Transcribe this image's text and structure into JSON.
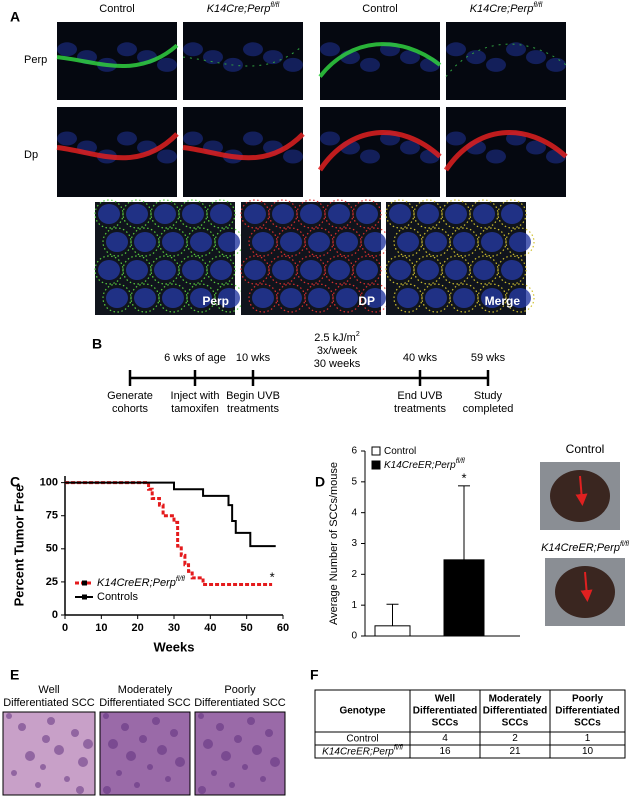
{
  "panel_labels": [
    "A",
    "B",
    "C",
    "D",
    "E",
    "F"
  ],
  "panel_a": {
    "column_headers": [
      {
        "text": "Control"
      },
      {
        "text": "K14Cre;Perp",
        "sup": "fl/fl"
      },
      {
        "text": "Control"
      },
      {
        "text": "K14Cre;Perp",
        "sup": "fl/fl"
      }
    ],
    "row_labels": [
      "Perp",
      "Dp"
    ],
    "inset_labels": [
      "Perp",
      "DP",
      "Merge"
    ]
  },
  "panel_b": {
    "above": [
      "6 wks of age",
      "10 wks",
      "40 wks",
      "59 wks"
    ],
    "dose": {
      "text": "2.5 kJ/m",
      "sup": "2"
    },
    "dose_lines": [
      "3x/week",
      "30 weeks"
    ],
    "below": [
      [
        "Generate",
        "cohorts"
      ],
      [
        "Inject with",
        "tamoxifen"
      ],
      [
        "Begin UVB",
        "treatments"
      ],
      [
        "End UVB",
        "treatments"
      ],
      [
        "Study",
        "completed"
      ]
    ]
  },
  "chart_data": [
    {
      "type": "line",
      "x_label": "Weeks",
      "y_label": "Percent Tumor Free",
      "xlim": [
        0,
        60
      ],
      "xticks": [
        0,
        10,
        20,
        30,
        40,
        50,
        60
      ],
      "ylim": [
        0,
        105
      ],
      "yticks": [
        0,
        25,
        50,
        75,
        100
      ],
      "grid": false,
      "legend": "lower-left",
      "series": [
        {
          "name": "K14CreER;Perp",
          "name_sup": "fl/fl",
          "color": "#e41a1c",
          "dashed": true,
          "x": [
            0,
            23,
            23,
            24,
            24,
            26,
            26,
            27,
            27,
            30,
            30,
            31,
            31,
            32,
            32,
            33,
            33,
            34,
            34,
            35,
            35,
            38,
            38,
            57
          ],
          "values": [
            100,
            100,
            95,
            95,
            88,
            88,
            83,
            83,
            75,
            75,
            70,
            70,
            52,
            52,
            45,
            45,
            38,
            38,
            33,
            33,
            28,
            28,
            23,
            23
          ]
        },
        {
          "name": "Controls",
          "color": "#000000",
          "dashed": false,
          "x": [
            0,
            30,
            30,
            38,
            38,
            45,
            45,
            46,
            46,
            47,
            47,
            51,
            51,
            58
          ],
          "values": [
            100,
            100,
            95,
            95,
            90,
            90,
            83,
            83,
            71,
            71,
            62,
            62,
            52,
            52
          ]
        }
      ],
      "annotations": [
        "*"
      ]
    },
    {
      "type": "bar",
      "y_label": "Average Number of SCCs/mouse",
      "ylim": [
        0,
        6
      ],
      "yticks": [
        0,
        1,
        2,
        3,
        4,
        5,
        6
      ],
      "legend": "upper-left",
      "series": [
        {
          "name": "Control",
          "color": "#ffffff",
          "values": [
            0.33
          ],
          "errors": [
            0.7
          ]
        },
        {
          "name": "K14CreER;Perp",
          "name_sup": "fl/fl",
          "color": "#000000",
          "values": [
            2.47
          ],
          "errors": [
            2.4
          ]
        }
      ],
      "annotations": [
        "*"
      ]
    }
  ],
  "panel_d_photos": [
    {
      "text": "Control"
    },
    {
      "text": "K14CreER;Perp",
      "sup": "fl/fl"
    }
  ],
  "panel_e": [
    [
      "Well",
      "Differentiated SCC"
    ],
    [
      "Moderately",
      "Differentiated SCC"
    ],
    [
      "Poorly",
      "Differentiated SCC"
    ]
  ],
  "table": {
    "header": [
      "Genotype",
      [
        "Well",
        "Differentiated",
        "SCCs"
      ],
      [
        "Moderately",
        "Differentiated",
        "SCCs"
      ],
      [
        "Poorly",
        "Differentiated",
        "SCCs"
      ]
    ],
    "rows": [
      [
        {
          "text": "Control"
        },
        4,
        2,
        1
      ],
      [
        {
          "text": "K14CreER;Perp",
          "sup": "fl/fl"
        },
        16,
        21,
        10
      ]
    ]
  }
}
